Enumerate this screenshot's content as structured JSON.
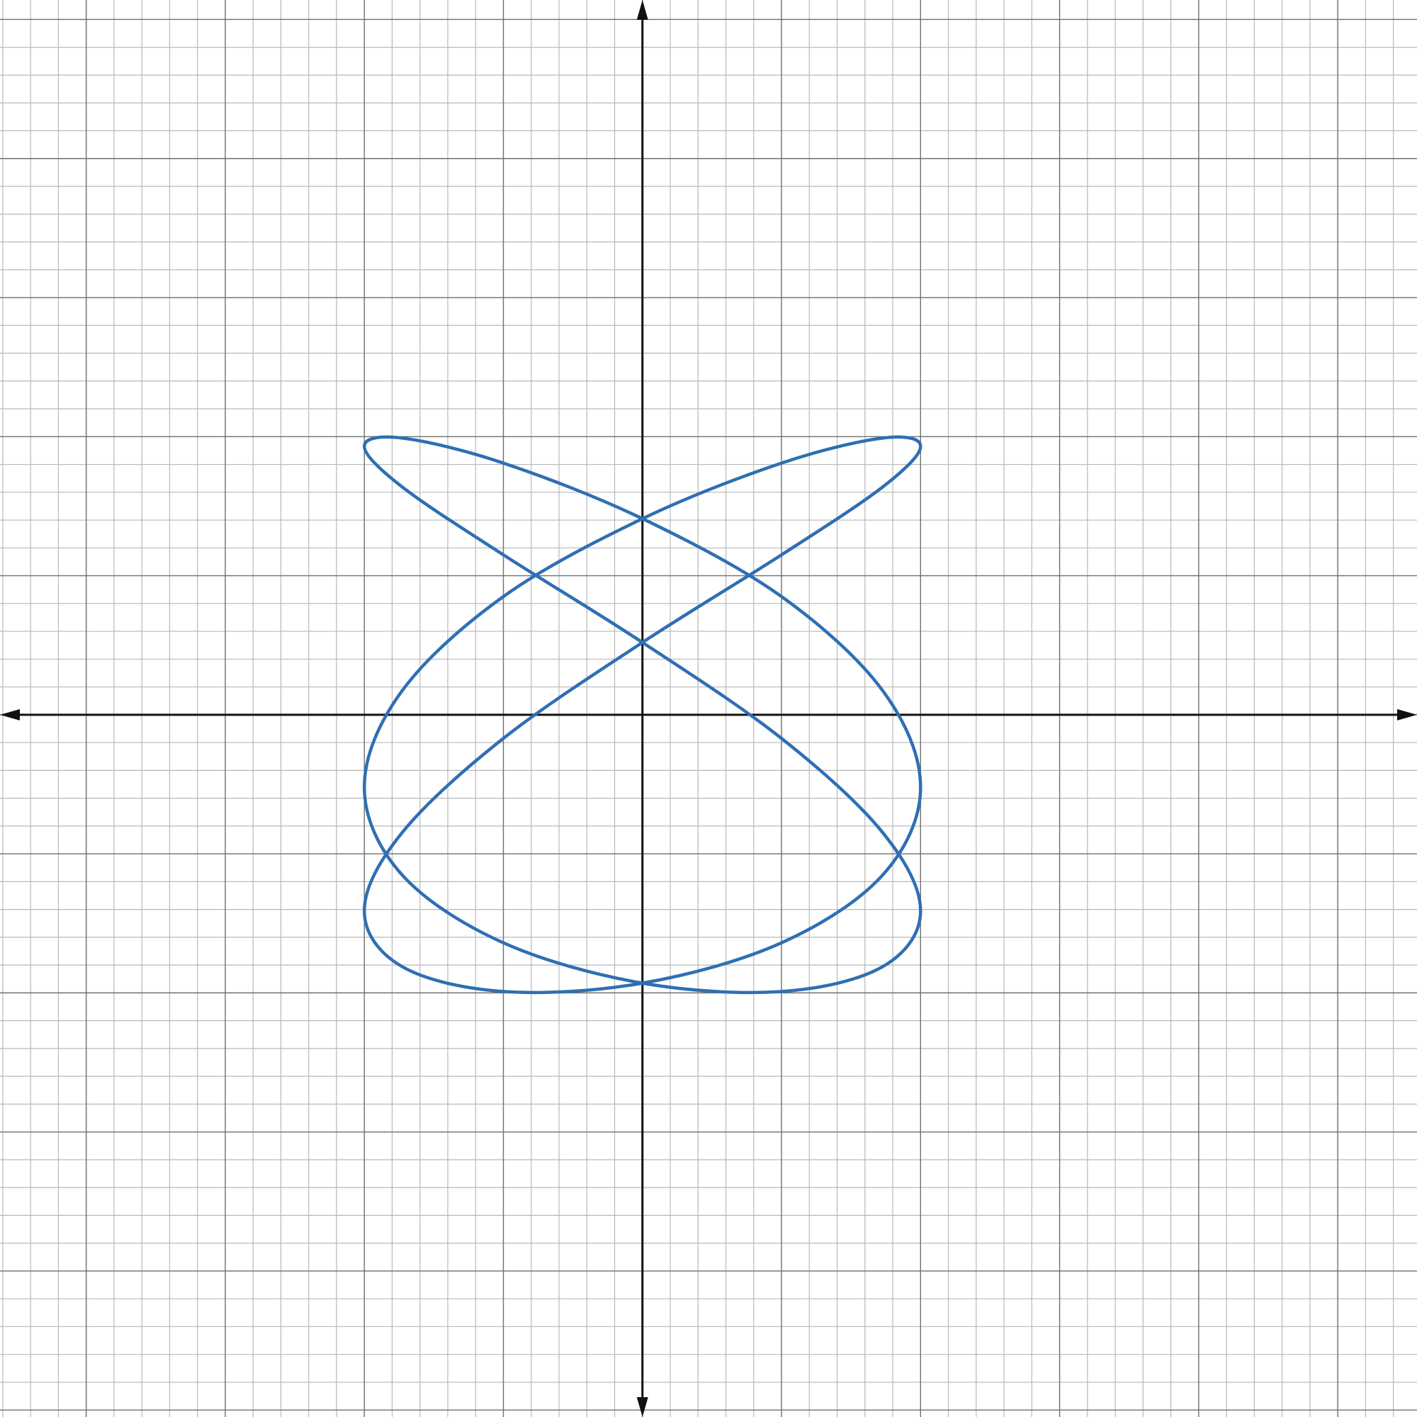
{
  "chart_data": {
    "type": "parametric",
    "xlim": [
      -4.62,
      5.57
    ],
    "ylim": [
      -5.05,
      5.14
    ],
    "xticks": [
      -4,
      -3,
      -2,
      -1,
      0,
      1,
      2,
      3,
      4,
      5
    ],
    "yticks": [
      -5,
      -4,
      -3,
      -2,
      -1,
      0,
      1,
      2,
      3,
      4,
      5
    ],
    "minor_step": 0.2,
    "grid": true,
    "series": [
      {
        "color": "#2f6fb3",
        "x": [
          2,
          1.73,
          1,
          0,
          -1,
          -1.73,
          -2,
          -1.73,
          -1,
          0,
          1,
          1.73,
          2,
          1.73,
          1,
          0,
          -1,
          -1.73,
          -2,
          -1.73,
          -1,
          0,
          1,
          1.73,
          2,
          1.73,
          1,
          0,
          -1,
          -1.73,
          -2,
          -1.73,
          -1,
          0,
          1,
          1.73
        ],
        "values": [
          1.93,
          1.64,
          1.15,
          0.52,
          -0.17,
          -0.85,
          -1.41,
          -1.81,
          -1.99,
          -1.93,
          -1.64,
          -1.15,
          -0.52,
          0.17,
          0.85,
          1.41,
          1.81,
          1.99,
          1.93,
          1.64,
          1.15,
          0.52,
          -0.17,
          -0.85,
          -1.41,
          -1.81,
          -1.99,
          -1.93,
          -1.64,
          -1.15,
          -0.52,
          0.17,
          0.85,
          1.41,
          1.81,
          1.99
        ]
      }
    ]
  }
}
